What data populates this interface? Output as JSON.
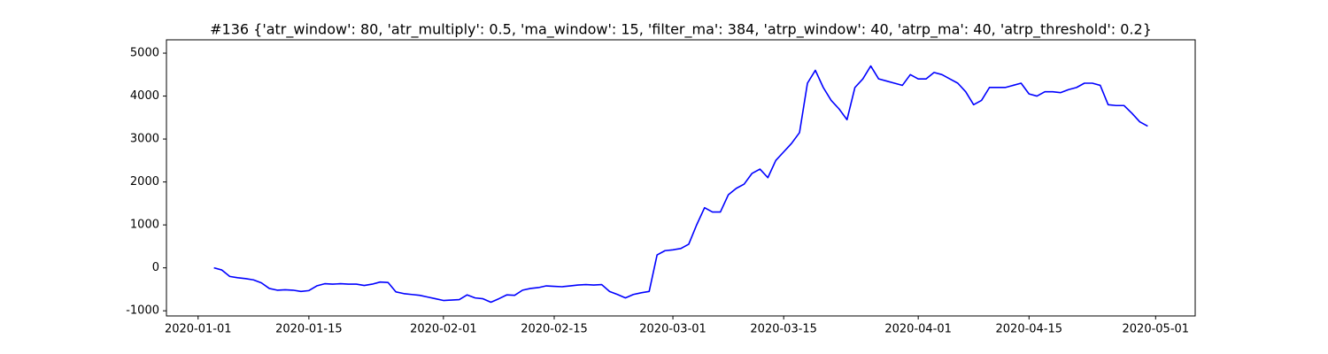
{
  "chart_data": {
    "type": "line",
    "title": "#136 {'atr_window': 80, 'atr_multiply': 0.5, 'ma_window': 15, 'filter_ma': 384, 'atrp_window': 40, 'atrp_ma': 40, 'atrp_threshold': 0.2}",
    "x": [
      "2020-01-03",
      "2020-01-04",
      "2020-01-05",
      "2020-01-06",
      "2020-01-07",
      "2020-01-08",
      "2020-01-09",
      "2020-01-10",
      "2020-01-11",
      "2020-01-12",
      "2020-01-13",
      "2020-01-14",
      "2020-01-15",
      "2020-01-16",
      "2020-01-17",
      "2020-01-18",
      "2020-01-19",
      "2020-01-20",
      "2020-01-21",
      "2020-01-22",
      "2020-01-23",
      "2020-01-24",
      "2020-01-25",
      "2020-01-26",
      "2020-01-27",
      "2020-01-28",
      "2020-01-29",
      "2020-01-30",
      "2020-01-31",
      "2020-02-01",
      "2020-02-02",
      "2020-02-03",
      "2020-02-04",
      "2020-02-05",
      "2020-02-06",
      "2020-02-07",
      "2020-02-08",
      "2020-02-09",
      "2020-02-10",
      "2020-02-11",
      "2020-02-12",
      "2020-02-13",
      "2020-02-14",
      "2020-02-15",
      "2020-02-16",
      "2020-02-17",
      "2020-02-18",
      "2020-02-19",
      "2020-02-20",
      "2020-02-21",
      "2020-02-22",
      "2020-02-23",
      "2020-02-24",
      "2020-02-25",
      "2020-02-26",
      "2020-02-27",
      "2020-02-28",
      "2020-02-29",
      "2020-03-01",
      "2020-03-02",
      "2020-03-03",
      "2020-03-04",
      "2020-03-05",
      "2020-03-06",
      "2020-03-07",
      "2020-03-08",
      "2020-03-09",
      "2020-03-10",
      "2020-03-11",
      "2020-03-12",
      "2020-03-13",
      "2020-03-14",
      "2020-03-15",
      "2020-03-16",
      "2020-03-17",
      "2020-03-18",
      "2020-03-19",
      "2020-03-20",
      "2020-03-21",
      "2020-03-22",
      "2020-03-23",
      "2020-03-24",
      "2020-03-25",
      "2020-03-26",
      "2020-03-27",
      "2020-03-28",
      "2020-03-29",
      "2020-03-30",
      "2020-03-31",
      "2020-04-01",
      "2020-04-02",
      "2020-04-03",
      "2020-04-04",
      "2020-04-05",
      "2020-04-06",
      "2020-04-07",
      "2020-04-08",
      "2020-04-09",
      "2020-04-10",
      "2020-04-11",
      "2020-04-12",
      "2020-04-13",
      "2020-04-14",
      "2020-04-15",
      "2020-04-16",
      "2020-04-17",
      "2020-04-18",
      "2020-04-19",
      "2020-04-20",
      "2020-04-21",
      "2020-04-22",
      "2020-04-23",
      "2020-04-24",
      "2020-04-25",
      "2020-04-26",
      "2020-04-27",
      "2020-04-28",
      "2020-04-29",
      "2020-04-30"
    ],
    "series": [
      {
        "color": "#0000ff",
        "values": [
          0,
          -50,
          -200,
          -230,
          -250,
          -280,
          -350,
          -480,
          -520,
          -510,
          -520,
          -550,
          -530,
          -420,
          -370,
          -380,
          -370,
          -380,
          -380,
          -410,
          -380,
          -330,
          -340,
          -560,
          -600,
          -620,
          -640,
          -680,
          -720,
          -760,
          -750,
          -740,
          -630,
          -700,
          -720,
          -800,
          -720,
          -630,
          -640,
          -520,
          -480,
          -460,
          -420,
          -430,
          -440,
          -420,
          -400,
          -390,
          -400,
          -390,
          -550,
          -620,
          -700,
          -620,
          -580,
          -550,
          300,
          400,
          420,
          450,
          550,
          1000,
          1400,
          1300,
          1300,
          1700,
          1850,
          1950,
          2200,
          2300,
          2100,
          2500,
          2700,
          2900,
          3150,
          4300,
          4600,
          4200,
          3900,
          3700,
          3450,
          4200,
          4400,
          4700,
          4400,
          4350,
          4300,
          4250,
          4500,
          4400,
          4400,
          4550,
          4500,
          4400,
          4300,
          4100,
          3800,
          3900,
          4200,
          4200,
          4200,
          4250,
          4300,
          4050,
          4000,
          4100,
          4100,
          4080,
          4150,
          4200,
          4300,
          4300,
          4250,
          3800,
          3780,
          3780,
          3600,
          3400,
          3300
        ]
      }
    ],
    "xlim": [
      "2019-12-28",
      "2020-05-06"
    ],
    "xticks": [
      "2020-01-01",
      "2020-01-15",
      "2020-02-01",
      "2020-02-15",
      "2020-03-01",
      "2020-03-15",
      "2020-04-01",
      "2020-04-15",
      "2020-05-01"
    ],
    "ylim": [
      -1120,
      5310
    ],
    "yticks": [
      -1000,
      0,
      1000,
      2000,
      3000,
      4000,
      5000
    ],
    "grid": false
  }
}
